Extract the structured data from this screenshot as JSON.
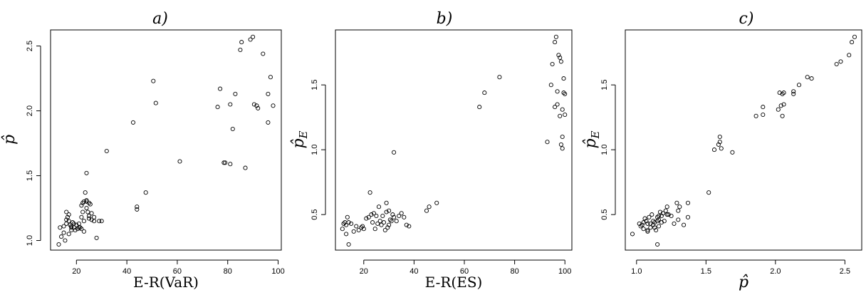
{
  "chart_data": [
    {
      "type": "scatter",
      "title": "a)",
      "xlabel": "E-R(VaR)",
      "ylabel": "p̂",
      "xlim": [
        12,
        99
      ],
      "ylim": [
        0.97,
        2.58
      ],
      "xticks": [
        20,
        40,
        60,
        80,
        100
      ],
      "yticks": [
        1.0,
        1.5,
        2.0,
        2.5
      ],
      "x": [
        13,
        13.5,
        14,
        15,
        15.5,
        16,
        16,
        16.5,
        17,
        17,
        17.5,
        18,
        18,
        18.5,
        19,
        19.5,
        20,
        20.5,
        21,
        21.5,
        22,
        22,
        22.5,
        23,
        23,
        23.5,
        24,
        24,
        24.5,
        25,
        25,
        25.5,
        26,
        26,
        27,
        27,
        28,
        29,
        24,
        23,
        22,
        16,
        17,
        15,
        18,
        19,
        21,
        22.5,
        24,
        25,
        30,
        32,
        42.5,
        44,
        44,
        47.5,
        50.5,
        51.5,
        61,
        76,
        77,
        78.5,
        79,
        81,
        81,
        82,
        83,
        85,
        85.5,
        87,
        89,
        90,
        90.5,
        91.5,
        92,
        94,
        96,
        96,
        97,
        98
      ],
      "y": [
        0.97,
        1.1,
        1.03,
        1.06,
        1.0,
        1.13,
        1.22,
        1.18,
        1.05,
        1.15,
        1.12,
        1.1,
        1.08,
        1.14,
        1.1,
        1.08,
        1.12,
        1.09,
        1.13,
        1.1,
        1.18,
        1.27,
        1.22,
        1.3,
        1.15,
        1.37,
        1.31,
        1.25,
        1.22,
        1.29,
        1.19,
        1.28,
        1.21,
        1.16,
        1.18,
        1.15,
        1.02,
        1.15,
        1.52,
        1.07,
        1.09,
        1.16,
        1.2,
        1.11,
        1.11,
        1.13,
        1.1,
        1.29,
        1.3,
        1.17,
        1.15,
        1.69,
        1.91,
        1.26,
        1.24,
        1.37,
        2.23,
        2.06,
        1.61,
        2.03,
        2.17,
        1.6,
        1.6,
        1.59,
        2.05,
        1.86,
        2.13,
        2.47,
        2.53,
        1.56,
        2.55,
        2.57,
        2.05,
        2.04,
        2.02,
        2.44,
        1.91,
        2.13,
        2.26,
        2.04
      ]
    },
    {
      "type": "scatter",
      "title": "b)",
      "xlabel": "E-R(ES)",
      "ylabel": "p̂_E",
      "xlim": [
        11,
        100.5
      ],
      "ylim": [
        0.27,
        1.88
      ],
      "xticks": [
        20,
        40,
        60,
        80,
        100
      ],
      "yticks": [
        0.5,
        1.0,
        1.5
      ],
      "x": [
        11.5,
        12,
        12.5,
        13,
        13,
        13.5,
        14,
        14,
        15,
        16,
        17,
        18,
        19,
        19.5,
        20,
        21,
        22,
        22.5,
        23,
        23.5,
        24,
        24.5,
        25,
        25.5,
        26,
        26.5,
        27,
        27.5,
        28,
        28.5,
        29,
        29,
        29.5,
        30,
        30,
        30.5,
        31,
        31.5,
        32,
        33,
        34,
        35,
        36,
        37,
        38,
        32,
        45,
        46,
        49,
        66,
        68,
        74,
        93,
        94.5,
        95,
        96,
        96.5,
        97,
        97.5,
        98,
        98,
        98.5,
        98.5,
        99,
        99,
        99,
        99.5,
        99.5,
        100,
        100,
        97,
        96
      ],
      "y": [
        0.39,
        0.43,
        0.44,
        0.35,
        0.42,
        0.48,
        0.27,
        0.44,
        0.43,
        0.37,
        0.41,
        0.38,
        0.4,
        0.41,
        0.39,
        0.47,
        0.48,
        0.67,
        0.5,
        0.44,
        0.51,
        0.39,
        0.49,
        0.43,
        0.56,
        0.45,
        0.42,
        0.49,
        0.44,
        0.38,
        0.52,
        0.59,
        0.4,
        0.53,
        0.42,
        0.46,
        0.45,
        0.5,
        0.48,
        0.45,
        0.49,
        0.51,
        0.48,
        0.42,
        0.41,
        0.98,
        0.53,
        0.56,
        0.59,
        1.33,
        1.44,
        1.56,
        1.06,
        1.5,
        1.66,
        1.83,
        1.87,
        1.35,
        1.73,
        1.26,
        1.71,
        1.68,
        1.04,
        1.01,
        1.1,
        1.31,
        1.44,
        1.55,
        1.27,
        1.43,
        1.45,
        1.33
      ]
    },
    {
      "type": "scatter",
      "title": "c)",
      "xlabel": "p̂",
      "ylabel": "p̂_E",
      "xlim": [
        0.96,
        2.58
      ],
      "ylim": [
        0.27,
        1.88
      ],
      "xticks": [
        1.0,
        1.5,
        2.0,
        2.5
      ],
      "yticks": [
        0.5,
        1.0,
        1.5
      ],
      "x": [
        0.97,
        1.02,
        1.03,
        1.04,
        1.05,
        1.06,
        1.07,
        1.08,
        1.08,
        1.09,
        1.1,
        1.1,
        1.11,
        1.12,
        1.12,
        1.13,
        1.14,
        1.15,
        1.15,
        1.16,
        1.16,
        1.17,
        1.18,
        1.18,
        1.19,
        1.2,
        1.21,
        1.22,
        1.23,
        1.25,
        1.27,
        1.29,
        1.3,
        1.3,
        1.31,
        1.34,
        1.37,
        1.37,
        1.05,
        1.08,
        1.13,
        1.16,
        1.52,
        1.56,
        1.59,
        1.6,
        1.6,
        1.61,
        1.69,
        1.86,
        1.91,
        1.91,
        2.02,
        2.03,
        2.04,
        2.05,
        2.05,
        2.06,
        2.06,
        2.13,
        2.13,
        2.17,
        2.23,
        2.26,
        2.44,
        2.47,
        2.53,
        2.55,
        2.57,
        1.15,
        1.22
      ],
      "y": [
        0.35,
        0.43,
        0.41,
        0.42,
        0.39,
        0.47,
        0.45,
        0.43,
        0.38,
        0.48,
        0.4,
        0.43,
        0.5,
        0.42,
        0.45,
        0.44,
        0.38,
        0.48,
        0.27,
        0.46,
        0.41,
        0.52,
        0.49,
        0.44,
        0.51,
        0.45,
        0.53,
        0.56,
        0.5,
        0.49,
        0.43,
        0.59,
        0.53,
        0.46,
        0.56,
        0.42,
        0.59,
        0.48,
        0.44,
        0.37,
        0.4,
        0.49,
        0.67,
        1.0,
        1.04,
        1.1,
        1.06,
        1.01,
        0.98,
        1.26,
        1.33,
        1.27,
        1.31,
        1.44,
        1.34,
        1.26,
        1.43,
        1.35,
        1.44,
        1.43,
        1.45,
        1.5,
        1.56,
        1.55,
        1.66,
        1.68,
        1.73,
        1.83,
        1.87,
        0.45,
        0.5
      ]
    }
  ]
}
